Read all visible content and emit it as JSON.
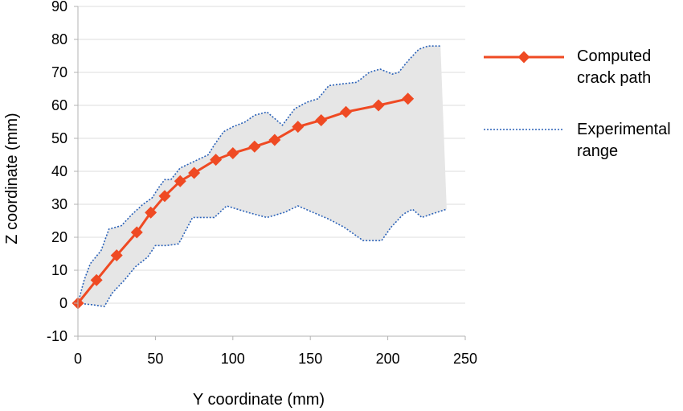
{
  "chart_data": {
    "type": "line",
    "xlabel": "Y coordinate (mm)",
    "ylabel": "Z coordinate (mm)",
    "xlim": [
      0,
      250
    ],
    "ylim": [
      -10,
      90
    ],
    "xticks": [
      0,
      50,
      100,
      150,
      200,
      250
    ],
    "yticks": [
      -10,
      0,
      10,
      20,
      30,
      40,
      50,
      60,
      70,
      80,
      90
    ],
    "grid": "horizontal",
    "legend_position": "right",
    "series": [
      {
        "name": "Computed crack path",
        "color": "#ef4a23",
        "marker": "diamond",
        "points": [
          [
            0,
            0
          ],
          [
            12,
            7
          ],
          [
            25,
            14.5
          ],
          [
            38,
            21.5
          ],
          [
            47,
            27.5
          ],
          [
            56,
            32.5
          ],
          [
            66,
            37
          ],
          [
            75,
            39.5
          ],
          [
            89,
            43.5
          ],
          [
            100,
            45.5
          ],
          [
            114,
            47.5
          ],
          [
            127,
            49.5
          ],
          [
            142,
            53.5
          ],
          [
            157,
            55.5
          ],
          [
            173,
            58
          ],
          [
            194,
            60
          ],
          [
            213,
            62
          ]
        ]
      },
      {
        "name": "Experimental range",
        "color": "#2b62b8",
        "style": "dotted",
        "upper": [
          [
            0,
            0
          ],
          [
            4,
            7
          ],
          [
            8,
            12
          ],
          [
            15,
            16
          ],
          [
            20,
            22.5
          ],
          [
            28,
            23.5
          ],
          [
            35,
            27
          ],
          [
            42,
            30
          ],
          [
            48,
            32
          ],
          [
            52,
            35
          ],
          [
            56,
            37.5
          ],
          [
            60,
            37.5
          ],
          [
            66,
            41
          ],
          [
            75,
            43
          ],
          [
            84,
            45
          ],
          [
            88,
            48
          ],
          [
            94,
            52
          ],
          [
            100,
            53.5
          ],
          [
            108,
            55
          ],
          [
            114,
            57
          ],
          [
            122,
            58
          ],
          [
            127,
            56
          ],
          [
            132,
            54
          ],
          [
            140,
            59
          ],
          [
            148,
            61
          ],
          [
            155,
            62
          ],
          [
            162,
            66
          ],
          [
            170,
            66.5
          ],
          [
            180,
            67
          ],
          [
            188,
            70
          ],
          [
            195,
            71
          ],
          [
            203,
            69.5
          ],
          [
            207,
            70
          ],
          [
            213,
            73.5
          ],
          [
            220,
            77
          ],
          [
            226,
            78
          ],
          [
            234,
            78
          ]
        ],
        "lower": [
          [
            0,
            0
          ],
          [
            10,
            -0.5
          ],
          [
            17,
            -1
          ],
          [
            22,
            3
          ],
          [
            30,
            7
          ],
          [
            37,
            11
          ],
          [
            45,
            14
          ],
          [
            50,
            17.5
          ],
          [
            57,
            17.5
          ],
          [
            65,
            18
          ],
          [
            74,
            26
          ],
          [
            88,
            26
          ],
          [
            96,
            29.5
          ],
          [
            110,
            27.5
          ],
          [
            122,
            26
          ],
          [
            133,
            27.5
          ],
          [
            142,
            29.5
          ],
          [
            152,
            27.5
          ],
          [
            162,
            25.5
          ],
          [
            172,
            23
          ],
          [
            184,
            19
          ],
          [
            196,
            19
          ],
          [
            202,
            23
          ],
          [
            210,
            27
          ],
          [
            216,
            28.5
          ],
          [
            222,
            26
          ],
          [
            228,
            27
          ],
          [
            238,
            28.5
          ]
        ],
        "fill": "#e6e6e6"
      }
    ]
  }
}
